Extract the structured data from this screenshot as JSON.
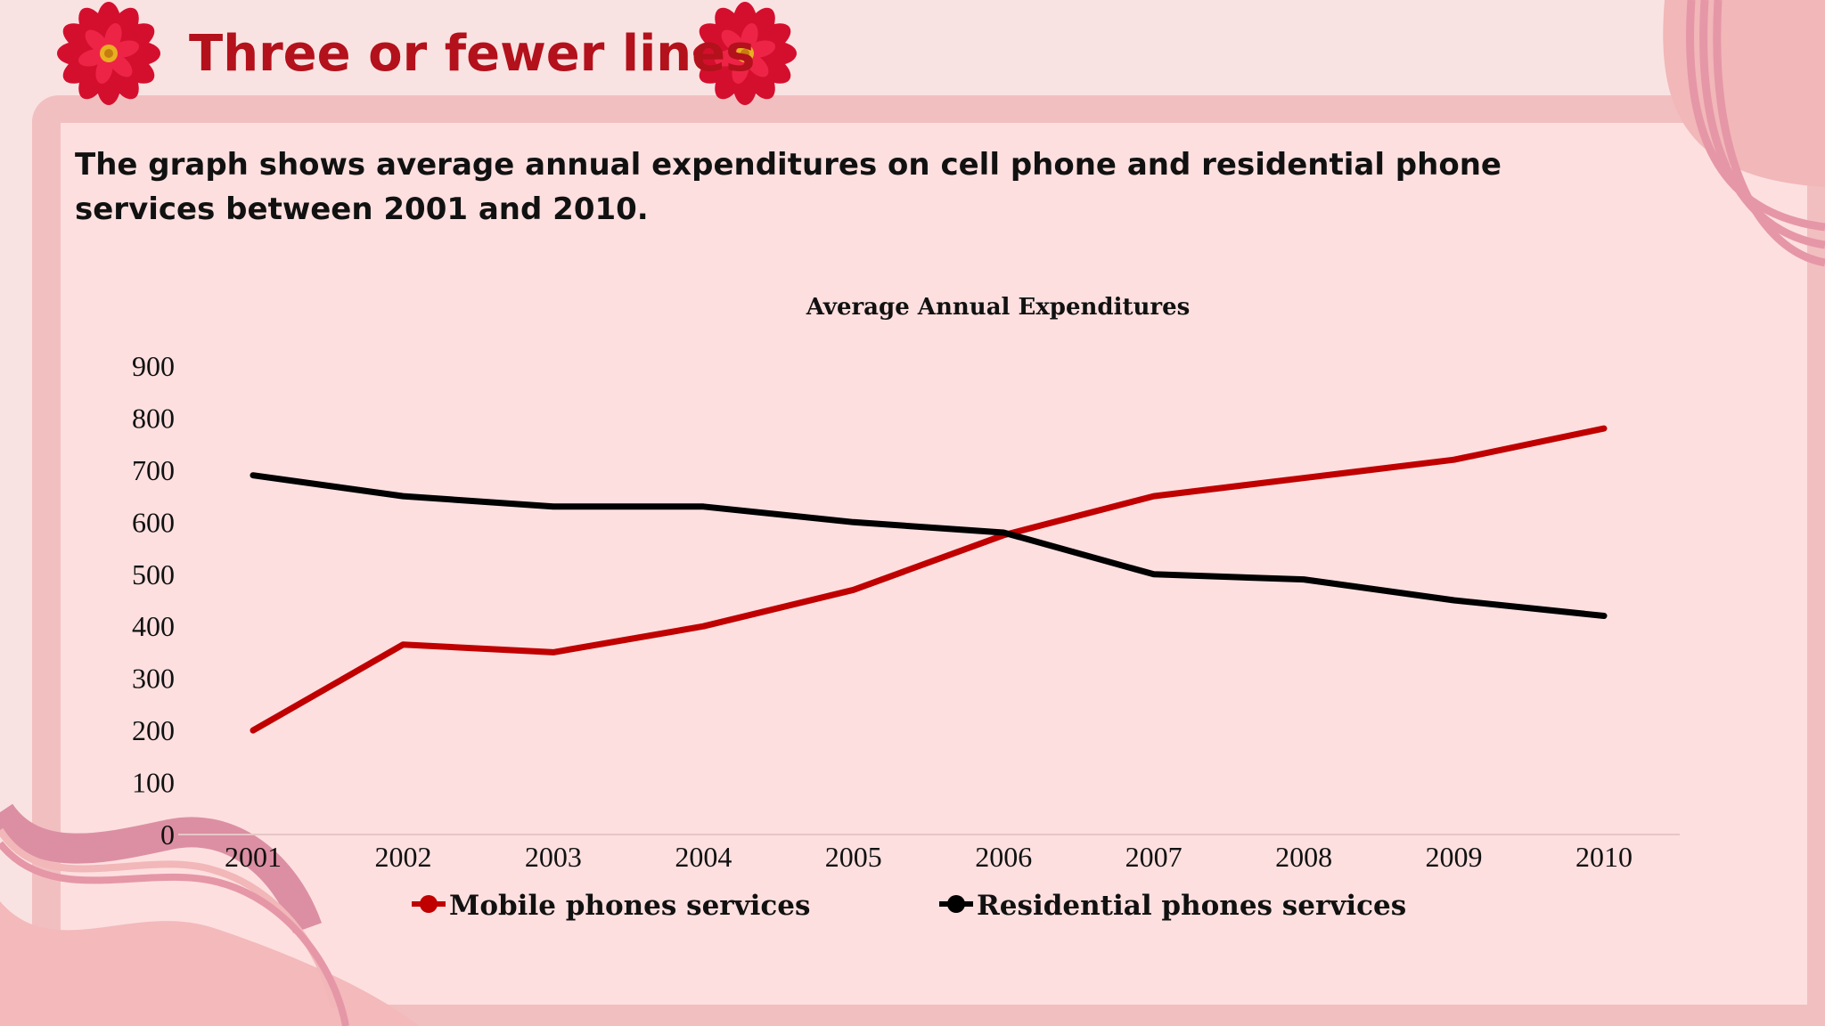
{
  "slide": {
    "title": "Three or fewer lines",
    "description": "The graph shows average annual expenditures on cell phone and residential phone services between 2001 and 2010."
  },
  "colors": {
    "accent": "#b3111b",
    "mobile": "#c00000",
    "residential": "#000000",
    "background": "#fddfdf"
  },
  "chart_data": {
    "type": "line",
    "title": "Average Annual Expenditures",
    "xlabel": "",
    "ylabel": "",
    "categories": [
      "2001",
      "2002",
      "2003",
      "2004",
      "2005",
      "2006",
      "2007",
      "2008",
      "2009",
      "2010"
    ],
    "ylim": [
      0,
      900
    ],
    "yticks": [
      0,
      100,
      200,
      300,
      400,
      500,
      600,
      700,
      800,
      900
    ],
    "grid": false,
    "legend": "bottom",
    "series": [
      {
        "name": "Mobile phones services",
        "color": "#c00000",
        "values": [
          200,
          365,
          350,
          400,
          470,
          575,
          650,
          685,
          720,
          780
        ]
      },
      {
        "name": "Residential phones services",
        "color": "#000000",
        "values": [
          690,
          650,
          630,
          630,
          600,
          580,
          500,
          490,
          450,
          420
        ]
      }
    ]
  }
}
